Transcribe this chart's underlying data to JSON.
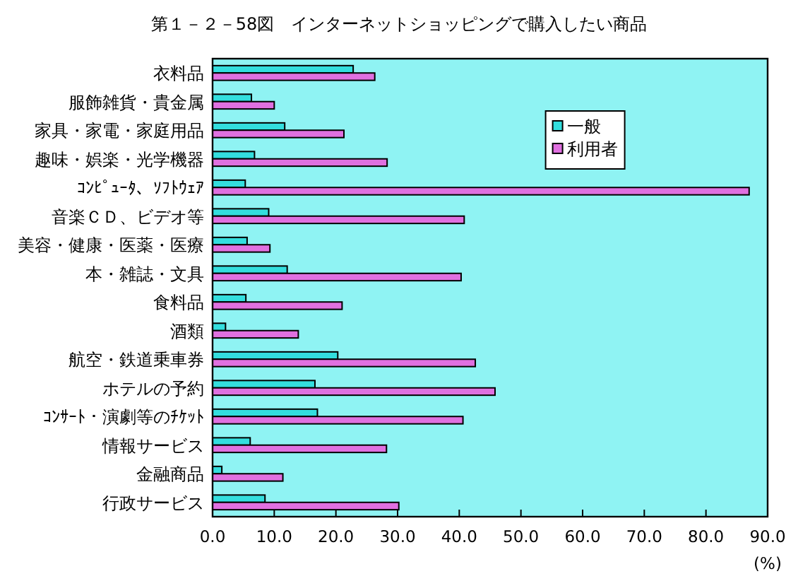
{
  "chart_data": {
    "type": "bar",
    "orientation": "horizontal",
    "title": "第１－２－58図　インターネットショッピングで購入したい商品",
    "xlabel": "(%)",
    "categories": [
      "衣料品",
      "服飾雑貨・貴金属",
      "家具・家電・家庭用品",
      "趣味・娯楽・光学機器",
      "ｺﾝﾋﾟｭｰﾀ、ｿﾌﾄｳｪｱ",
      "音楽ＣＤ、ビデオ等",
      "美容・健康・医薬・医療",
      "本・雑誌・文具",
      "食料品",
      "酒類",
      "航空・鉄道乗車券",
      "ホテルの予約",
      "ｺﾝｻｰﾄ・演劇等のﾁｹｯﾄ",
      "情報サービス",
      "金融商品",
      "行政サービス"
    ],
    "series": [
      {
        "name": "一般",
        "color": "#33dede",
        "values": [
          22.8,
          6.3,
          11.7,
          6.8,
          5.3,
          9.1,
          5.6,
          12.1,
          5.4,
          2.1,
          20.3,
          16.6,
          17.0,
          6.1,
          1.5,
          8.5
        ]
      },
      {
        "name": "利用者",
        "color": "#e070e0",
        "values": [
          26.3,
          10.0,
          21.3,
          28.3,
          87.0,
          40.8,
          9.3,
          40.3,
          21.0,
          13.9,
          42.6,
          45.8,
          40.6,
          28.2,
          11.4,
          30.2
        ]
      }
    ],
    "xlim": [
      0,
      90
    ],
    "xticks": [
      {
        "value": 0,
        "label": "0.0"
      },
      {
        "value": 10,
        "label": "10.0"
      },
      {
        "value": 20,
        "label": "20.0"
      },
      {
        "value": 30,
        "label": "30.0"
      },
      {
        "value": 40,
        "label": "40.0"
      },
      {
        "value": 50,
        "label": "50.0"
      },
      {
        "value": 60,
        "label": "60.0"
      },
      {
        "value": 70,
        "label": "70.0"
      },
      {
        "value": 80,
        "label": "80.0"
      },
      {
        "value": 90,
        "label": "90.0"
      }
    ],
    "legend": "top right"
  }
}
